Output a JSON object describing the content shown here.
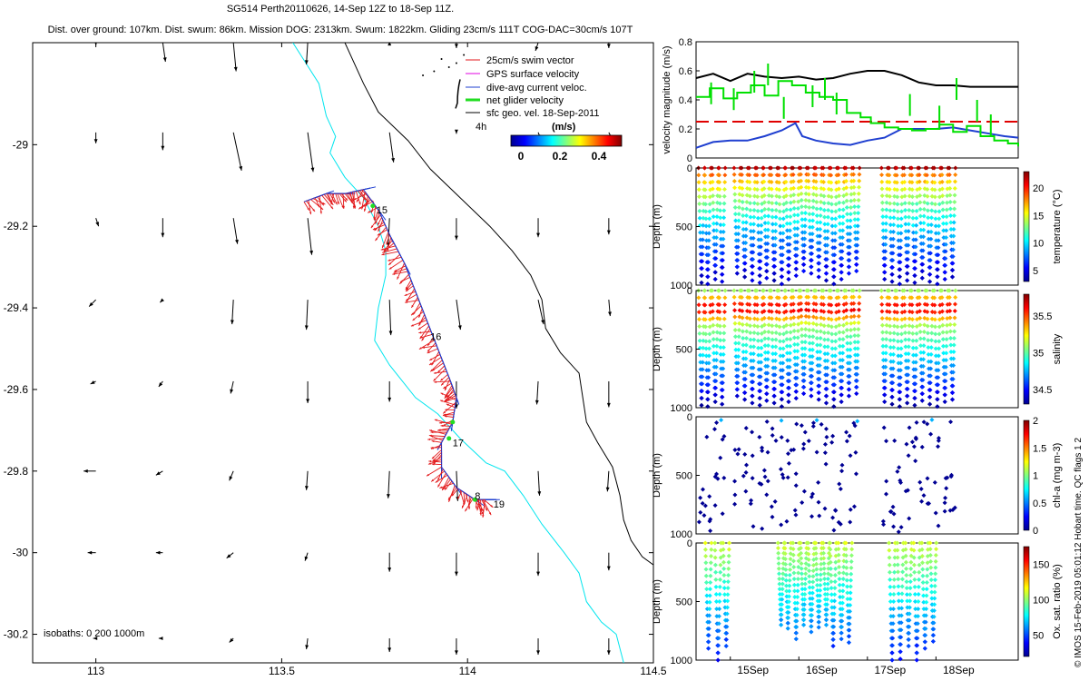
{
  "header": {
    "title": "SG514 Perth20110626, 14-Sep 12Z to 18-Sep 11Z.",
    "subtitle": "Dist. over ground: 107km. Dist. swum: 86km. Mission DOG: 2313km. Swum: 1822km. Gliding 23cm/s 111T COG-DAC=30cm/s 107T"
  },
  "credit": "© IMOS 15-Feb-2019 05:01:12 Hobart time. QC flags 1  2",
  "colors": {
    "swim": "#e31a1c",
    "gps": "#e000e0",
    "dac": "#1f3fd0",
    "net_glider": "#22dd22",
    "sfc_geo": "#000000",
    "isobath_shallow": "#00e5ee",
    "isobath_deep": "#000000",
    "speed_black": "#000000",
    "speed_green": "#00e000",
    "speed_red": "#e00000",
    "speed_blue": "#1f3fd0"
  },
  "chart_data": [
    {
      "type": "scatter",
      "name": "track_map",
      "xlim": [
        112.83,
        114.5
      ],
      "ylim": [
        -30.27,
        -28.75
      ],
      "x_ticks": [
        "113",
        "113.5",
        "114",
        "114.5"
      ],
      "y_ticks": [
        "-29",
        "-29.2",
        "-29.4",
        "-29.6",
        "-29.8",
        "-30",
        "-30.2"
      ],
      "legend": [
        {
          "label": "25cm/s swim vector",
          "color": "#e31a1c"
        },
        {
          "label": "GPS surface velocity",
          "color": "#e000e0"
        },
        {
          "label": "dive-avg current veloc.",
          "color": "#1f3fd0"
        },
        {
          "label": "net glider velocity",
          "color": "#22dd22"
        },
        {
          "label": "sfc geo. vel. 18-Sep-2011",
          "color": "#000000"
        }
      ],
      "legend_position": "top-right",
      "colorbar": {
        "title": "(m/s)",
        "ticks": [
          "0",
          "0.2",
          "0.4"
        ],
        "range": [
          0,
          0.5
        ]
      },
      "time_label": "4h",
      "isobath_label": "isobaths: 0   200  1000m",
      "day_labels": [
        {
          "text": "15",
          "x": 113.745,
          "y": -29.16
        },
        {
          "text": "16",
          "x": 113.89,
          "y": -29.47
        },
        {
          "text": "17",
          "x": 113.95,
          "y": -29.73
        },
        {
          "text": "8",
          "x": 114.01,
          "y": -29.86
        },
        {
          "text": "19",
          "x": 114.06,
          "y": -29.88
        }
      ],
      "track": [
        [
          113.56,
          -29.14
        ],
        [
          113.62,
          -29.12
        ],
        [
          113.67,
          -29.12
        ],
        [
          113.72,
          -29.11
        ],
        [
          113.76,
          -29.16
        ],
        [
          113.79,
          -29.22
        ],
        [
          113.83,
          -29.29
        ],
        [
          113.86,
          -29.36
        ],
        [
          113.89,
          -29.43
        ],
        [
          113.92,
          -29.5
        ],
        [
          113.95,
          -29.57
        ],
        [
          113.97,
          -29.62
        ],
        [
          113.96,
          -29.68
        ],
        [
          113.93,
          -29.73
        ],
        [
          113.93,
          -29.79
        ],
        [
          113.97,
          -29.84
        ],
        [
          114.02,
          -29.87
        ],
        [
          114.05,
          -29.87
        ]
      ],
      "isobath_0": [
        [
          113.53,
          -28.75
        ],
        [
          113.6,
          -28.85
        ],
        [
          113.62,
          -28.93
        ],
        [
          113.645,
          -28.98
        ],
        [
          113.63,
          -29.02
        ],
        [
          113.67,
          -29.08
        ],
        [
          113.72,
          -29.13
        ],
        [
          113.76,
          -29.2
        ],
        [
          113.78,
          -29.26
        ],
        [
          113.78,
          -29.32
        ],
        [
          113.76,
          -29.4
        ],
        [
          113.75,
          -29.48
        ],
        [
          113.79,
          -29.54
        ],
        [
          113.86,
          -29.62
        ],
        [
          113.92,
          -29.66
        ],
        [
          113.98,
          -29.72
        ],
        [
          114.05,
          -29.78
        ],
        [
          114.1,
          -29.8
        ],
        [
          114.15,
          -29.86
        ],
        [
          114.2,
          -29.93
        ],
        [
          114.26,
          -30.0
        ],
        [
          114.3,
          -30.05
        ],
        [
          114.32,
          -30.12
        ],
        [
          114.36,
          -30.17
        ],
        [
          114.4,
          -30.2
        ],
        [
          114.42,
          -30.27
        ]
      ],
      "isobath_1000": [
        [
          113.67,
          -28.75
        ],
        [
          113.72,
          -28.85
        ],
        [
          113.76,
          -28.92
        ],
        [
          113.84,
          -28.99
        ],
        [
          113.9,
          -29.06
        ],
        [
          113.98,
          -29.13
        ],
        [
          114.06,
          -29.2
        ],
        [
          114.12,
          -29.26
        ],
        [
          114.17,
          -29.32
        ],
        [
          114.2,
          -29.38
        ],
        [
          114.21,
          -29.45
        ],
        [
          114.25,
          -29.51
        ],
        [
          114.3,
          -29.56
        ],
        [
          114.31,
          -29.62
        ],
        [
          114.32,
          -29.68
        ],
        [
          114.35,
          -29.73
        ],
        [
          114.39,
          -29.79
        ],
        [
          114.41,
          -29.86
        ],
        [
          114.42,
          -29.92
        ],
        [
          114.44,
          -29.97
        ],
        [
          114.47,
          -30.01
        ],
        [
          114.5,
          -30.03
        ]
      ],
      "geo_vectors": [
        {
          "lat": -28.75,
          "lons": [
            113.0,
            113.18,
            113.37,
            113.57,
            113.79,
            113.97,
            114.19,
            114.38
          ],
          "u": [
            0,
            0.02,
            0.02,
            -0.01,
            0,
            0,
            -0.02,
            0
          ],
          "v": [
            -0.02,
            -0.14,
            -0.21,
            -0.16,
            0.01,
            -0.04,
            -0.06,
            -0.04
          ]
        },
        {
          "lat": -28.97,
          "lons": [
            113.0,
            113.18,
            113.37,
            113.57,
            113.79,
            113.97,
            114.19,
            114.38
          ],
          "u": [
            0,
            0,
            0.06,
            0.04,
            0.03,
            0,
            0.02,
            0.03
          ],
          "v": [
            -0.08,
            -0.13,
            -0.28,
            -0.29,
            -0.22,
            -0.01,
            -0.05,
            -0.06
          ]
        },
        {
          "lat": -29.18,
          "lons": [
            113.0,
            113.18,
            113.37,
            113.57,
            113.79,
            113.97,
            114.19,
            114.38
          ],
          "u": [
            0.02,
            0,
            0.03,
            0.03,
            -0.01,
            0,
            0,
            0
          ],
          "v": [
            -0.06,
            -0.14,
            -0.19,
            -0.27,
            -0.21,
            -0.16,
            -0.14,
            -0.12
          ]
        },
        {
          "lat": -29.38,
          "lons": [
            113.0,
            113.18,
            113.37,
            113.57,
            113.79,
            113.97,
            114.19,
            114.38
          ],
          "u": [
            -0.05,
            -0.02,
            -0.01,
            -0.01,
            0.01,
            0.03,
            0.04,
            0.01
          ],
          "v": [
            -0.05,
            -0.02,
            -0.18,
            -0.22,
            -0.26,
            -0.22,
            -0.18,
            -0.12
          ]
        },
        {
          "lat": -29.58,
          "lons": [
            113.0,
            113.18,
            113.37,
            113.57,
            113.79,
            113.97,
            114.19,
            114.38
          ],
          "u": [
            -0.04,
            -0.03,
            -0.02,
            0,
            0,
            0,
            -0.01,
            0
          ],
          "v": [
            -0.02,
            -0.04,
            -0.09,
            -0.16,
            -0.15,
            -0.2,
            -0.17,
            -0.19
          ]
        },
        {
          "lat": -29.8,
          "lons": [
            113.0,
            113.18,
            113.37,
            113.57,
            113.79,
            113.97,
            114.19,
            114.38
          ],
          "u": [
            -0.09,
            -0.05,
            -0.03,
            -0.01,
            -0.01,
            0.01,
            0.01,
            -0.01
          ],
          "v": [
            0,
            -0.03,
            -0.07,
            -0.14,
            -0.2,
            -0.22,
            -0.18,
            -0.15
          ]
        },
        {
          "lat": -30.0,
          "lons": [
            113.0,
            113.18,
            113.37,
            113.57,
            113.79,
            113.97,
            114.19,
            114.38
          ],
          "u": [
            -0.06,
            -0.05,
            -0.05,
            -0.02,
            0,
            0,
            0,
            0
          ],
          "v": [
            0,
            0,
            -0.04,
            -0.06,
            -0.14,
            -0.17,
            -0.17,
            -0.13
          ]
        },
        {
          "lat": -30.21,
          "lons": [
            113.0,
            113.18,
            113.37,
            113.57,
            113.79,
            113.97,
            114.19,
            114.38
          ],
          "u": [
            -0.02,
            -0.03,
            -0.03,
            -0.01,
            0,
            0,
            0,
            0
          ],
          "v": [
            0,
            0,
            -0.03,
            -0.08,
            -0.1,
            -0.12,
            -0.12,
            -0.12
          ]
        }
      ]
    },
    {
      "type": "line",
      "name": "velocity_magnitude",
      "ylabel": "velocity magnitude (m/s)",
      "ylim": [
        0,
        0.8
      ],
      "y_ticks": [
        "0",
        "0.2",
        "0.4",
        "0.6",
        "0.8"
      ],
      "xlim": [
        14.5,
        19.2
      ],
      "series": [
        {
          "color": "#000000",
          "x": [
            14.5,
            14.75,
            15.0,
            15.25,
            15.5,
            15.75,
            16.0,
            16.25,
            16.5,
            16.75,
            17.0,
            17.25,
            17.5,
            17.75,
            18.0,
            18.25,
            18.5,
            18.75,
            19.0,
            19.2
          ],
          "values": [
            0.55,
            0.58,
            0.53,
            0.58,
            0.56,
            0.55,
            0.56,
            0.54,
            0.55,
            0.58,
            0.6,
            0.6,
            0.57,
            0.52,
            0.5,
            0.5,
            0.49,
            0.49,
            0.49,
            0.49
          ]
        },
        {
          "color": "#e00000",
          "dashed": true,
          "x": [
            14.5,
            19.2
          ],
          "values": [
            0.25,
            0.25
          ]
        },
        {
          "color": "#1f3fd0",
          "x": [
            14.5,
            14.75,
            15.0,
            15.25,
            15.5,
            15.75,
            15.95,
            16.05,
            16.25,
            16.5,
            16.75,
            17.0,
            17.25,
            17.5,
            17.75,
            18.0,
            18.25,
            18.5,
            18.75,
            19.0,
            19.2
          ],
          "values": [
            0.07,
            0.11,
            0.12,
            0.12,
            0.15,
            0.19,
            0.24,
            0.15,
            0.12,
            0.1,
            0.09,
            0.12,
            0.14,
            0.2,
            0.2,
            0.2,
            0.21,
            0.19,
            0.17,
            0.15,
            0.14
          ]
        },
        {
          "color": "#00e000",
          "step": true,
          "x": [
            14.5,
            14.7,
            14.9,
            15.1,
            15.3,
            15.5,
            15.7,
            15.9,
            16.1,
            16.3,
            16.5,
            16.7,
            16.9,
            17.05,
            17.25,
            17.45,
            17.65,
            17.85,
            18.05,
            18.25,
            18.45,
            18.65,
            18.85,
            19.05,
            19.2
          ],
          "values": [
            0.42,
            0.48,
            0.41,
            0.45,
            0.5,
            0.43,
            0.53,
            0.5,
            0.45,
            0.42,
            0.4,
            0.31,
            0.28,
            0.24,
            0.21,
            0.2,
            0.19,
            0.2,
            0.23,
            0.18,
            0.22,
            0.15,
            0.12,
            0.1,
            0.08
          ]
        }
      ]
    },
    {
      "type": "scatter",
      "name": "temperature_section",
      "ylabel": "Depth (m)",
      "colorbar_label": "temperature (°C)",
      "colorbar_ticks": [
        "5",
        "10",
        "15",
        "20"
      ],
      "crange": [
        3,
        23
      ],
      "ylim": [
        1000,
        0
      ],
      "y_ticks": [
        "0",
        "500",
        "1000"
      ],
      "dive_times": [
        14.58,
        14.67,
        14.78,
        14.88,
        15.1,
        15.21,
        15.32,
        15.43,
        15.53,
        15.64,
        15.75,
        15.85,
        15.96,
        16.07,
        16.18,
        16.29,
        16.4,
        16.51,
        16.62,
        16.73,
        16.84,
        17.25,
        17.36,
        17.47,
        17.58,
        17.69,
        17.8,
        17.91,
        18.02,
        18.13,
        18.24
      ],
      "dive_depths": [
        980,
        990,
        950,
        970,
        900,
        930,
        960,
        980,
        940,
        960,
        990,
        950,
        920,
        880,
        900,
        930,
        960,
        990,
        950,
        900,
        880,
        950,
        970,
        990,
        960,
        980,
        940,
        970,
        990,
        950,
        930
      ]
    },
    {
      "type": "scatter",
      "name": "salinity_section",
      "ylabel": "Depth (m)",
      "colorbar_label": "salinity",
      "colorbar_ticks": [
        "34.5",
        "35",
        "35.5"
      ],
      "crange": [
        34.3,
        35.8
      ],
      "ylim": [
        1000,
        0
      ],
      "y_ticks": [
        "0",
        "500",
        "1000"
      ],
      "dive_times": [
        14.58,
        14.67,
        14.78,
        14.88,
        15.1,
        15.21,
        15.32,
        15.43,
        15.53,
        15.64,
        15.75,
        15.85,
        15.96,
        16.07,
        16.18,
        16.29,
        16.4,
        16.51,
        16.62,
        16.73,
        16.84,
        17.25,
        17.36,
        17.47,
        17.58,
        17.69,
        17.8,
        17.91,
        18.02,
        18.13,
        18.24
      ],
      "dive_depths": [
        980,
        990,
        950,
        970,
        900,
        930,
        960,
        980,
        940,
        960,
        990,
        950,
        920,
        880,
        900,
        930,
        960,
        990,
        950,
        900,
        880,
        950,
        970,
        990,
        960,
        980,
        940,
        970,
        990,
        950,
        930
      ]
    },
    {
      "type": "scatter",
      "name": "chla_section",
      "ylabel": "Depth (m)",
      "colorbar_label": "chl-a (mg m-3)",
      "colorbar_ticks": [
        "0",
        "0.5",
        "1",
        "1.5",
        "2"
      ],
      "crange": [
        0,
        2
      ],
      "ylim": [
        1000,
        0
      ],
      "y_ticks": [
        "0",
        "500",
        "1000"
      ],
      "dive_times": [
        14.58,
        14.67,
        14.78,
        14.88,
        15.1,
        15.21,
        15.32,
        15.43,
        15.53,
        15.64,
        15.75,
        15.85,
        15.96,
        16.07,
        16.18,
        16.29,
        16.4,
        16.51,
        16.62,
        16.73,
        16.84,
        17.25,
        17.36,
        17.47,
        17.58,
        17.69,
        17.8,
        17.91,
        18.02,
        18.13,
        18.24
      ],
      "dive_depths": [
        980,
        990,
        950,
        970,
        900,
        930,
        960,
        980,
        940,
        960,
        990,
        950,
        920,
        880,
        900,
        930,
        960,
        990,
        950,
        900,
        880,
        950,
        970,
        990,
        960,
        980,
        940,
        970,
        990,
        950,
        930
      ]
    },
    {
      "type": "scatter",
      "name": "oxygen_section",
      "ylabel": "Depth (m)",
      "xlabel_ticks": [
        "15Sep",
        "16Sep",
        "17Sep",
        "18Sep"
      ],
      "x_tick_values": [
        15,
        16,
        17,
        18
      ],
      "colorbar_label": "Ox. sat. ratio (%)",
      "colorbar_ticks": [
        "50",
        "100",
        "150"
      ],
      "crange": [
        20,
        175
      ],
      "ylim": [
        1000,
        0
      ],
      "y_ticks": [
        "0",
        "500",
        "1000"
      ],
      "dive_times": [
        14.68,
        14.82,
        14.94,
        15.74,
        15.84,
        15.96,
        16.07,
        16.18,
        16.29,
        16.4,
        16.5,
        16.62,
        16.73,
        17.36,
        17.48,
        17.6,
        17.72,
        17.84,
        17.96
      ],
      "dive_depths": [
        900,
        1000,
        880,
        700,
        730,
        820,
        700,
        760,
        720,
        700,
        880,
        820,
        850,
        1000,
        990,
        880,
        1000,
        900,
        840
      ]
    }
  ]
}
